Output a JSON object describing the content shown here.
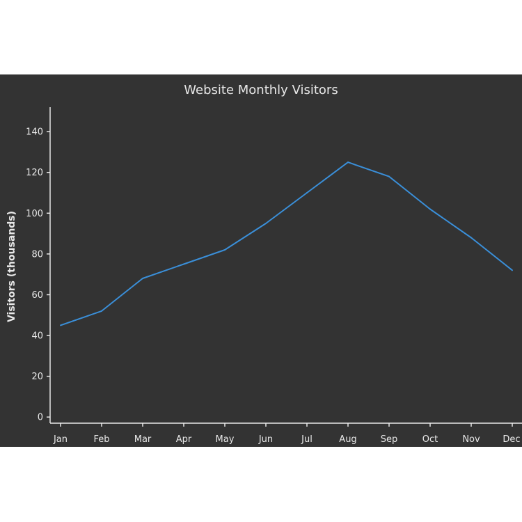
{
  "chart_data": {
    "type": "line",
    "title": "Website Monthly Visitors",
    "xlabel": "",
    "ylabel": "Visitors (thousands)",
    "categories": [
      "Jan",
      "Feb",
      "Mar",
      "Apr",
      "May",
      "Jun",
      "Jul",
      "Aug",
      "Sep",
      "Oct",
      "Nov",
      "Dec"
    ],
    "series": [
      {
        "values": [
          45,
          52,
          68,
          75,
          82,
          95,
          110,
          125,
          118,
          102,
          88,
          72
        ],
        "color": "#3a8fd9"
      }
    ],
    "ylim": [
      -3,
      152
    ],
    "yticks": [
      0,
      20,
      40,
      60,
      80,
      100,
      120,
      140
    ],
    "grid": false,
    "legend": "none",
    "background_color": "#333333",
    "text_color": "#e8e8e8"
  }
}
